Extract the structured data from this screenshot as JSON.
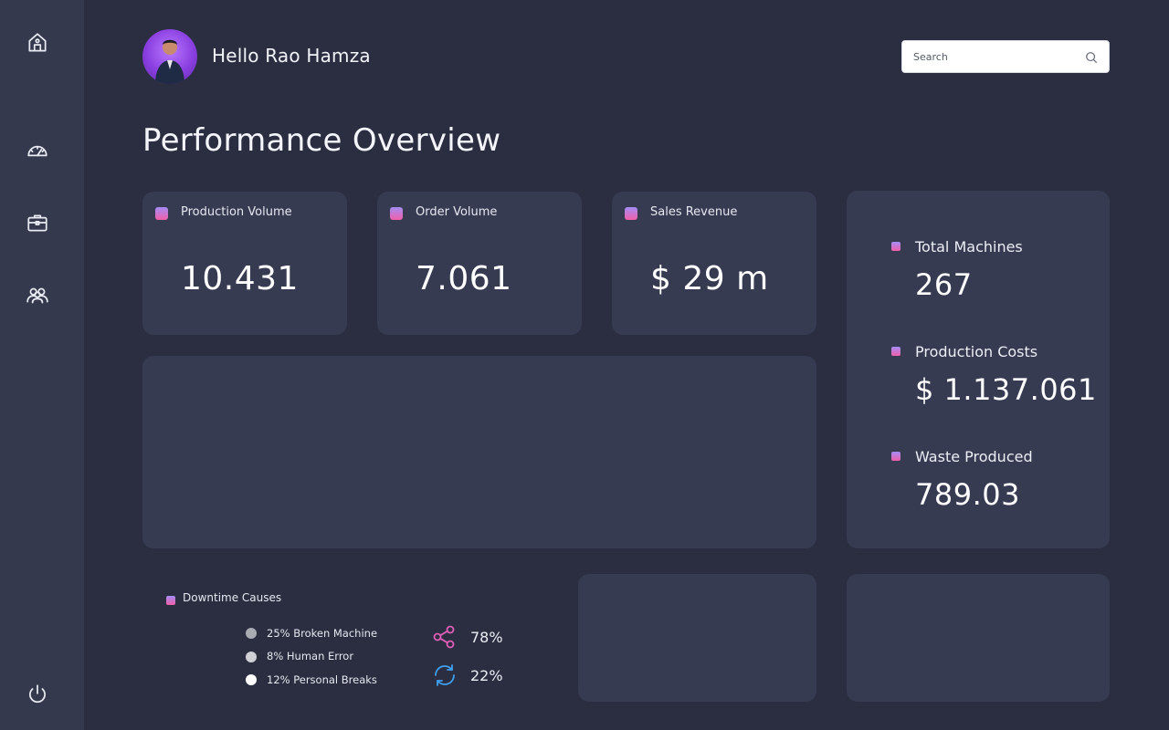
{
  "user": {
    "greeting": "Hello Rao Hamza"
  },
  "search": {
    "placeholder": "Search"
  },
  "page": {
    "title": "Performance Overview"
  },
  "kpis": [
    {
      "label": "Production Volume",
      "value": "10.431"
    },
    {
      "label": "Order Volume",
      "value": "7.061"
    },
    {
      "label": "Sales Revenue",
      "value": "$ 29 m"
    }
  ],
  "side_stats": [
    {
      "label": "Total Machines",
      "value": "267"
    },
    {
      "label": "Production Costs",
      "value": "$ 1.137.061"
    },
    {
      "label": "Waste Produced",
      "value": "789.03"
    }
  ],
  "downtime": {
    "title": "Downtime Causes",
    "legend": [
      {
        "text": "25% Broken Machine",
        "color": "#a9abb3"
      },
      {
        "text": "8% Human Error",
        "color": "#cfd1d7"
      },
      {
        "text": "12% Personal Breaks",
        "color": "#ffffff"
      }
    ],
    "stats": [
      {
        "icon": "share-icon",
        "value": "78%",
        "color": "#e05fb8"
      },
      {
        "icon": "refresh-icon",
        "value": "22%",
        "color": "#3ea0f0"
      }
    ]
  },
  "colors": {
    "background": "#2a2e40",
    "sidebar": "#34394e",
    "card": "#363b52",
    "accent_start": "#a58cf5",
    "accent_end": "#f05fa8"
  }
}
